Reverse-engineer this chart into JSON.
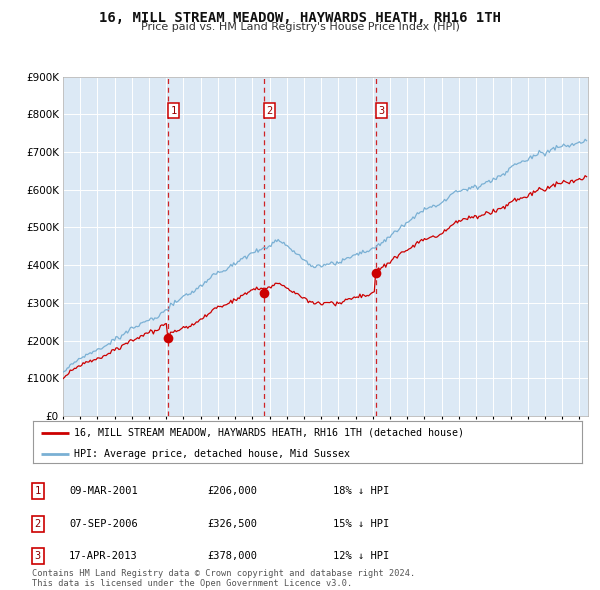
{
  "title": "16, MILL STREAM MEADOW, HAYWARDS HEATH, RH16 1TH",
  "subtitle": "Price paid vs. HM Land Registry's House Price Index (HPI)",
  "ylim": [
    0,
    900000
  ],
  "yticks": [
    0,
    100000,
    200000,
    300000,
    400000,
    500000,
    600000,
    700000,
    800000,
    900000
  ],
  "ytick_labels": [
    "£0",
    "£100K",
    "£200K",
    "£300K",
    "£400K",
    "£500K",
    "£600K",
    "£700K",
    "£800K",
    "£900K"
  ],
  "background_color": "#dce9f5",
  "grid_color": "#ffffff",
  "red_line_color": "#cc0000",
  "blue_line_color": "#7ab0d4",
  "sale_months": [
    73,
    140,
    218
  ],
  "sale_prices": [
    206000,
    326500,
    378000
  ],
  "sale_labels": [
    "1",
    "2",
    "3"
  ],
  "legend_red": "16, MILL STREAM MEADOW, HAYWARDS HEATH, RH16 1TH (detached house)",
  "legend_blue": "HPI: Average price, detached house, Mid Sussex",
  "table_rows": [
    {
      "num": "1",
      "date": "09-MAR-2001",
      "price": "£206,000",
      "hpi": "18% ↓ HPI"
    },
    {
      "num": "2",
      "date": "07-SEP-2006",
      "price": "£326,500",
      "hpi": "15% ↓ HPI"
    },
    {
      "num": "3",
      "date": "17-APR-2013",
      "price": "£378,000",
      "hpi": "12% ↓ HPI"
    }
  ],
  "footer1": "Contains HM Land Registry data © Crown copyright and database right 2024.",
  "footer2": "This data is licensed under the Open Government Licence v3.0.",
  "n_months": 366,
  "start_year": 1995
}
